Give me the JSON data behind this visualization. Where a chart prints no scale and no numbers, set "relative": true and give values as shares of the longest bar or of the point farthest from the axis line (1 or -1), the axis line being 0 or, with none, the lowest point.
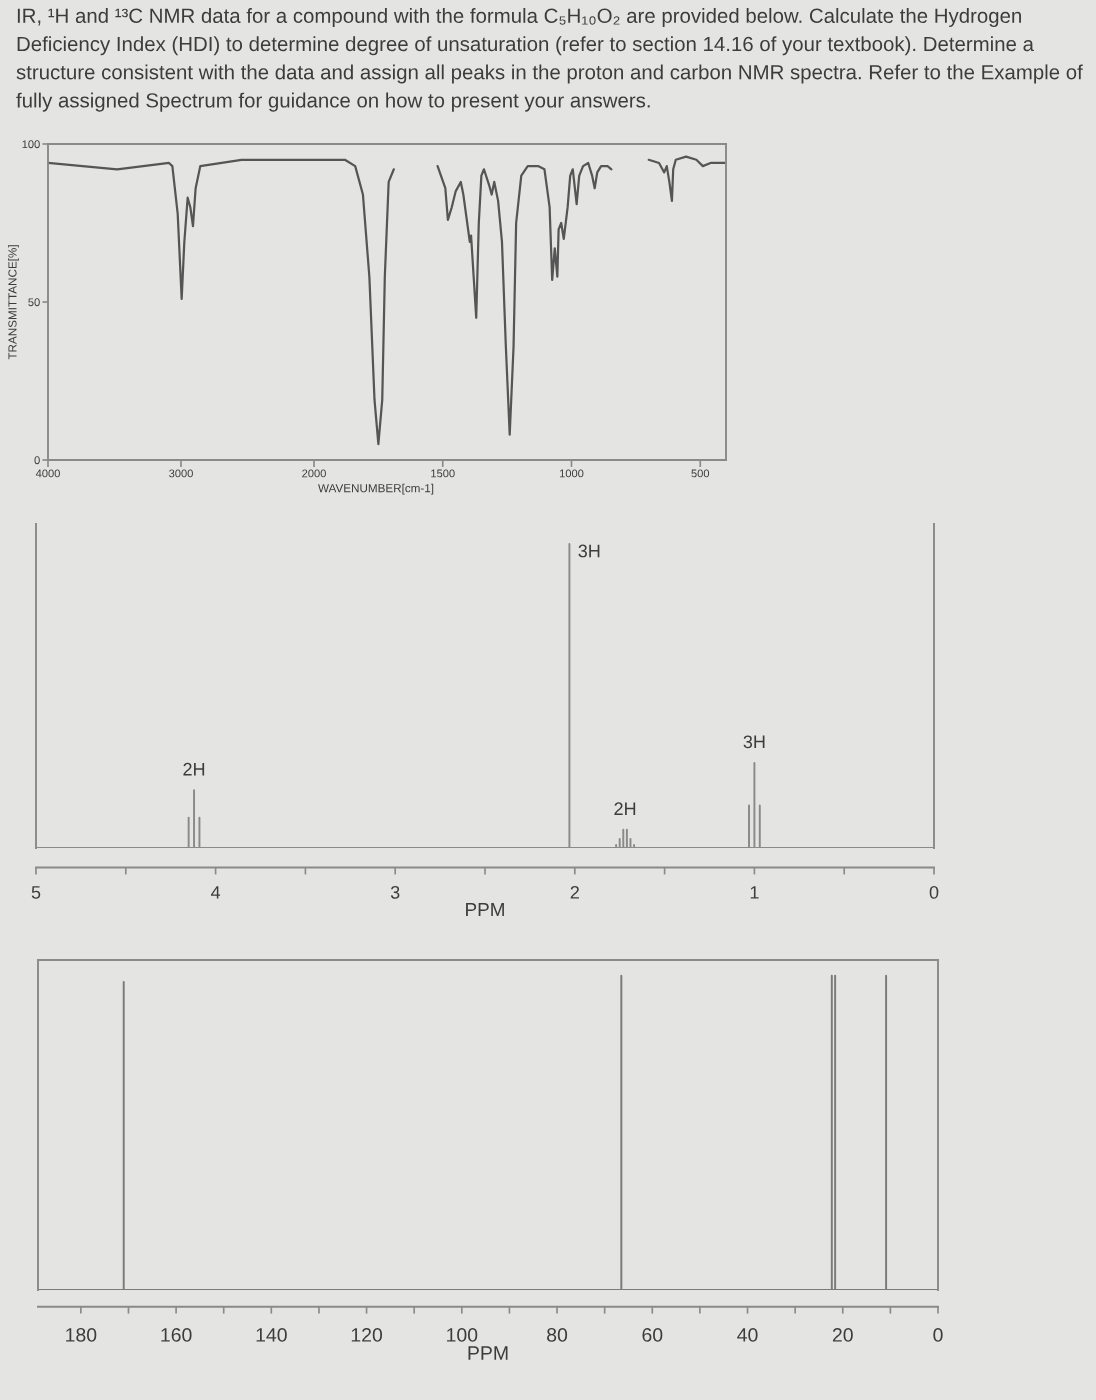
{
  "chart_data": [
    {
      "type": "line",
      "title": "IR, ¹H and ¹³C NMR data for a compound with the formula C₅H₁₀O₂ are provided below. Calculate the Hydrogen Deficiency Index (HDI) to determine degree of unsaturation (refer to section 14.16 of your textbook). Determine a structure consistent with the data and assign all peaks in the proton and carbon NMR spectra. Refer to the Example of fully assigned Spectrum for guidance on how to present your answers.",
      "ylabel": "TRANSMITTANCE[%]",
      "color": "#555555",
      "xlim": [
        4000,
        2000
      ],
      "xticks": [
        4000,
        3000,
        2000
      ],
      "ylim": [
        0,
        100
      ],
      "yticks": [
        0,
        50,
        100
      ],
      "x": [
        4000,
        3480,
        3090,
        3065,
        3025,
        2995,
        2975,
        2950,
        2930,
        2910,
        2890,
        2855,
        2545,
        2180,
        2000
      ],
      "values": [
        94,
        92,
        94,
        93,
        78,
        51,
        69,
        83,
        80,
        74,
        86,
        93,
        95,
        95,
        95
      ]
    },
    {
      "type": "line",
      "xlabel": "WAVENUMBER[cm-1]",
      "color": "#555555",
      "xlim": [
        2000,
        400
      ],
      "xticks": [
        1500,
        1000,
        500
      ],
      "ylim": [
        0,
        100
      ],
      "tick_labels": "x",
      "x": [
        2000,
        1880,
        1840,
        1810,
        1785,
        1765,
        1750,
        1735,
        1725,
        1710,
        1690,
        1600,
        1520,
        1490,
        1480,
        1465,
        1450,
        1430,
        1420,
        1410,
        1395,
        1390,
        1380,
        1370,
        1360,
        1350,
        1340,
        1320,
        1310,
        1300,
        1285,
        1270,
        1255,
        1240,
        1225,
        1215,
        1195,
        1170,
        1130,
        1105,
        1085,
        1075,
        1065,
        1055,
        1050,
        1040,
        1030,
        1015,
        1005,
        995,
        980,
        970,
        955,
        935,
        920,
        910,
        900,
        885,
        860,
        845,
        770,
        700,
        660,
        640,
        630,
        620,
        610,
        605,
        595,
        555,
        515,
        490,
        460,
        400
      ],
      "values": [
        95,
        95,
        93,
        84,
        58,
        19,
        5,
        19,
        58,
        88,
        92,
        null,
        93,
        86,
        76,
        80,
        85,
        88,
        84,
        78,
        69,
        71,
        58,
        45,
        75,
        90,
        92,
        87,
        84,
        88,
        82,
        69,
        36,
        8,
        36,
        75,
        90,
        93,
        93,
        92,
        80,
        57,
        67,
        58,
        73,
        75,
        70,
        80,
        90,
        92,
        81,
        90,
        93,
        94,
        90,
        86,
        91,
        93,
        93,
        92,
        null,
        95,
        94,
        91,
        93,
        88,
        82,
        92,
        95,
        96,
        95,
        93,
        94,
        94
      ]
    },
    {
      "type": "line",
      "relative": true,
      "xlabel": "PPM",
      "color": "#8a8a8a",
      "xlim": [
        5,
        0
      ],
      "xticks": [
        5,
        {
          "value": 4.5,
          "label": null
        },
        4,
        {
          "value": 3.5,
          "label": null
        },
        3,
        {
          "value": 2.5,
          "label": null
        },
        2,
        {
          "value": 1.5,
          "label": null
        },
        1,
        {
          "value": 0.5,
          "label": null
        },
        0
      ],
      "x": [
        5,
        4.15,
        4.15,
        4.15,
        4.12,
        4.12,
        4.12,
        4.09,
        4.09,
        4.09,
        2.03,
        2.03,
        2.03,
        1.77,
        1.77,
        1.77,
        1.75,
        1.75,
        1.75,
        1.73,
        1.73,
        1.73,
        1.71,
        1.71,
        1.71,
        1.69,
        1.69,
        1.69,
        1.67,
        1.67,
        1.67,
        1.03,
        1.03,
        1.03,
        1.0,
        1.0,
        1.0,
        0.97,
        0.97,
        0.97,
        0
      ],
      "values": [
        0,
        0,
        0.1,
        0,
        0,
        0.19,
        0,
        0,
        0.1,
        0,
        0,
        1,
        0,
        0,
        0.01,
        0,
        0,
        0.03,
        0,
        0,
        0.06,
        0,
        0,
        0.06,
        0,
        0,
        0.03,
        0,
        0,
        0.01,
        0,
        0,
        0.14,
        0,
        0,
        0.28,
        0,
        0,
        0.14,
        0,
        0
      ],
      "annotations": [
        {
          "text": "2H",
          "x": 4.12,
          "y": 0.19
        },
        {
          "text": "3H",
          "x": 2.03,
          "y": 1
        },
        {
          "text": "2H",
          "x": 1.72,
          "y": 0.06
        },
        {
          "text": "3H",
          "x": 1.0,
          "y": 0.28
        }
      ]
    },
    {
      "type": "line",
      "relative": true,
      "xlabel": "PPM",
      "color": "#7a7a7a",
      "xlim": [
        189,
        0
      ],
      "xticks": [
        180,
        {
          "value": 170,
          "label": null
        },
        160,
        {
          "value": 150,
          "label": null
        },
        140,
        {
          "value": 130,
          "label": null
        },
        120,
        {
          "value": 110,
          "label": null
        },
        100,
        {
          "value": 90,
          "label": null
        },
        80,
        {
          "value": 70,
          "label": null
        },
        60,
        {
          "value": 50,
          "label": null
        },
        40,
        {
          "value": 30,
          "label": null
        },
        20,
        {
          "value": 10,
          "label": null
        },
        0
      ],
      "x": [
        189,
        171,
        171,
        171,
        66.5,
        66.5,
        66.5,
        22.3,
        22.3,
        22.3,
        21.6,
        21.6,
        21.6,
        10.9,
        10.9,
        10.9,
        0
      ],
      "values": [
        0,
        0,
        0.98,
        0,
        0,
        1,
        0,
        0,
        1,
        0,
        0,
        1,
        0,
        0,
        1,
        0,
        0
      ]
    }
  ]
}
